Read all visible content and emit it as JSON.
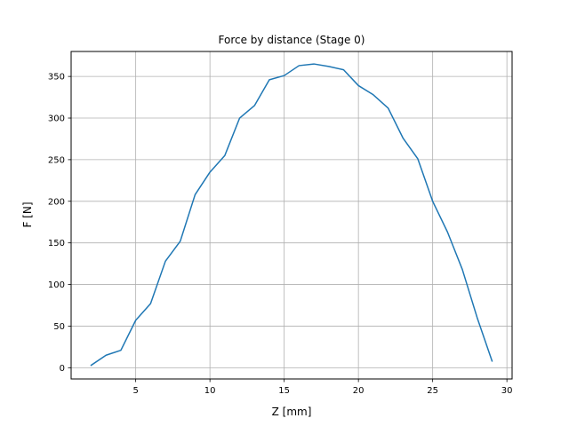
{
  "chart_data": {
    "type": "line",
    "title": "Force by distance (Stage 0)",
    "xlabel": "Z [mm]",
    "ylabel": "F [N]",
    "xlim": [
      0.65,
      30.35
    ],
    "ylim": [
      -13.5,
      380
    ],
    "xticks": [
      5,
      10,
      15,
      20,
      25,
      30
    ],
    "yticks": [
      0,
      50,
      100,
      150,
      200,
      250,
      300,
      350
    ],
    "grid": true,
    "line_color": "#1f77b4",
    "series": [
      {
        "x": [
          2,
          3,
          4,
          5,
          6,
          7,
          8,
          9,
          10,
          11,
          12,
          13,
          14,
          15,
          16,
          17,
          18,
          19,
          20,
          21,
          22,
          23,
          24,
          25,
          26,
          27,
          28,
          29
        ],
        "y": [
          3,
          15,
          21,
          57,
          77,
          128,
          152,
          208,
          235,
          255,
          300,
          315,
          346,
          351,
          363,
          365,
          362,
          358,
          339,
          328,
          312,
          276,
          251,
          200,
          163,
          118,
          60,
          8
        ]
      }
    ]
  }
}
